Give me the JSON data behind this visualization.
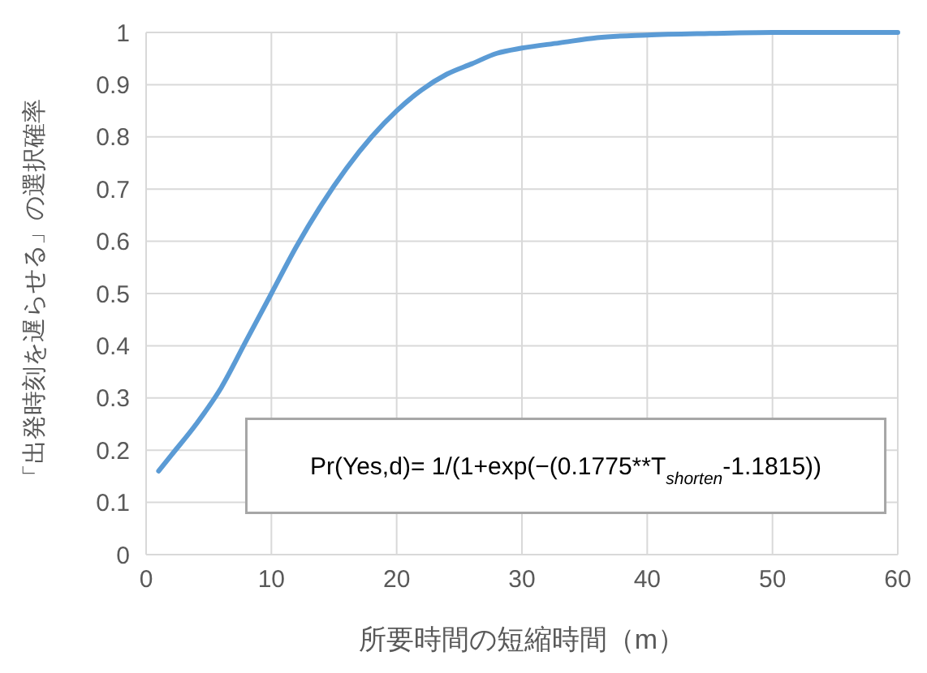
{
  "chart_data": {
    "type": "line",
    "xlabel": "所要時間の短縮時間（m）",
    "ylabel": "「出発時刻を遅らせる」の選択確率",
    "x": [
      1,
      2,
      4,
      6,
      8,
      10,
      12,
      14,
      16,
      18,
      20,
      22,
      24,
      26,
      28,
      30,
      33,
      36,
      40,
      45,
      50,
      55,
      60
    ],
    "series": [
      {
        "color": "#5b9bd5",
        "values": [
          0.16,
          0.19,
          0.25,
          0.32,
          0.41,
          0.5,
          0.59,
          0.67,
          0.74,
          0.8,
          0.85,
          0.89,
          0.92,
          0.94,
          0.96,
          0.97,
          0.98,
          0.99,
          0.995,
          0.998,
          1,
          1,
          1
        ]
      }
    ],
    "xlim": [
      0,
      60
    ],
    "xticks": [
      0,
      10,
      20,
      30,
      40,
      50,
      60
    ],
    "ylim": [
      0,
      1
    ],
    "yticks": [
      0,
      0.1,
      0.2,
      0.3,
      0.4,
      0.5,
      0.6,
      0.7,
      0.8,
      0.9,
      1
    ],
    "grid": true,
    "marker": "none",
    "line_style": "solid",
    "annotations": [
      "Pr(Yes,d)= 1/(1+exp(−(0.1775**T$_{shorten}$-1.1815))"
    ]
  }
}
